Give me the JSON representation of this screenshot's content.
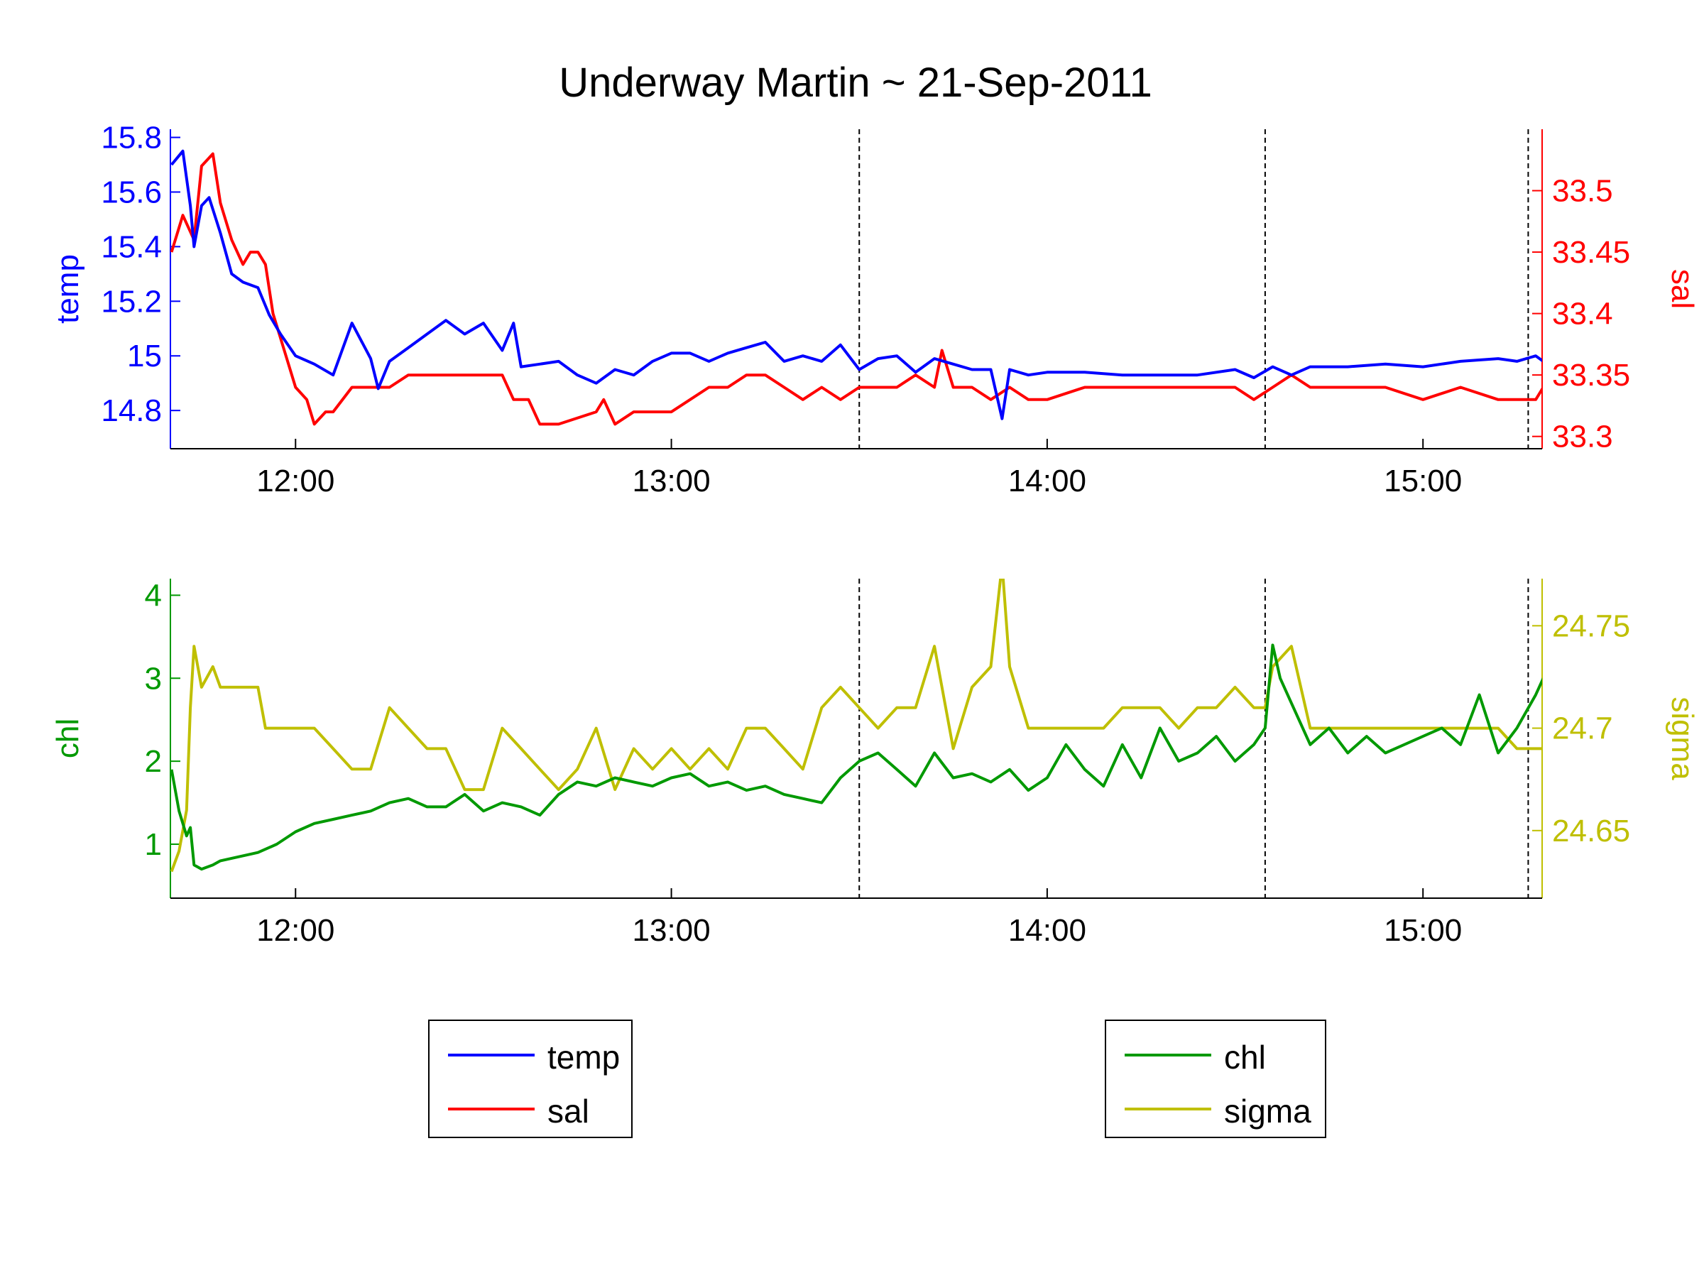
{
  "title": "Underway Martin ~ 21-Sep-2011",
  "colors": {
    "temp": "#0000ff",
    "sal": "#ff0000",
    "chl": "#009900",
    "sigma": "#bfbf00",
    "marker": "#000000"
  },
  "chart_data": [
    {
      "type": "line",
      "x_ticks": [
        "12:00",
        "13:00",
        "14:00",
        "15:00"
      ],
      "x_tick_values": [
        12.0,
        13.0,
        14.0,
        15.0
      ],
      "xlim": [
        11.667,
        15.317
      ],
      "vertical_markers": [
        13.5,
        14.58,
        15.28
      ],
      "left_axis": {
        "label": "temp",
        "ticks": [
          "14.8",
          "15",
          "15.2",
          "15.4",
          "15.6",
          "15.8"
        ],
        "ylim": [
          14.66,
          15.83
        ]
      },
      "right_axis": {
        "label": "sal",
        "ticks": [
          "33.3",
          "33.35",
          "33.4",
          "33.45",
          "33.5"
        ],
        "ylim": [
          33.29,
          33.55
        ]
      },
      "series": [
        {
          "name": "temp",
          "axis": "left",
          "x": [
            11.67,
            11.7,
            11.72,
            11.73,
            11.75,
            11.77,
            11.8,
            11.83,
            11.86,
            11.9,
            11.93,
            11.96,
            12.0,
            12.05,
            12.1,
            12.15,
            12.2,
            12.22,
            12.25,
            12.3,
            12.35,
            12.4,
            12.45,
            12.5,
            12.55,
            12.58,
            12.6,
            12.65,
            12.7,
            12.75,
            12.8,
            12.85,
            12.9,
            12.95,
            13.0,
            13.05,
            13.1,
            13.15,
            13.2,
            13.25,
            13.3,
            13.35,
            13.4,
            13.45,
            13.5,
            13.55,
            13.6,
            13.65,
            13.7,
            13.75,
            13.8,
            13.85,
            13.88,
            13.9,
            13.95,
            14.0,
            14.1,
            14.2,
            14.3,
            14.4,
            14.5,
            14.55,
            14.6,
            14.65,
            14.7,
            14.8,
            14.9,
            15.0,
            15.1,
            15.2,
            15.25,
            15.3,
            15.32
          ],
          "y": [
            15.7,
            15.75,
            15.55,
            15.4,
            15.55,
            15.58,
            15.45,
            15.3,
            15.27,
            15.25,
            15.15,
            15.08,
            15.0,
            14.97,
            14.93,
            15.12,
            14.99,
            14.88,
            14.98,
            15.03,
            15.08,
            15.13,
            15.08,
            15.12,
            15.02,
            15.12,
            14.96,
            14.97,
            14.98,
            14.93,
            14.9,
            14.95,
            14.93,
            14.98,
            15.01,
            15.01,
            14.98,
            15.01,
            15.03,
            15.05,
            14.98,
            15.0,
            14.98,
            15.04,
            14.95,
            14.99,
            15.0,
            14.94,
            14.99,
            14.97,
            14.95,
            14.95,
            14.77,
            14.95,
            14.93,
            14.94,
            14.94,
            14.93,
            14.93,
            14.93,
            14.95,
            14.92,
            14.96,
            14.93,
            14.96,
            14.96,
            14.97,
            14.96,
            14.98,
            14.99,
            14.98,
            15.0,
            14.98
          ]
        },
        {
          "name": "sal",
          "axis": "right",
          "x": [
            11.67,
            11.7,
            11.73,
            11.75,
            11.78,
            11.8,
            11.83,
            11.86,
            11.88,
            11.9,
            11.92,
            11.94,
            11.96,
            12.0,
            12.03,
            12.05,
            12.08,
            12.1,
            12.15,
            12.2,
            12.25,
            12.3,
            12.4,
            12.5,
            12.55,
            12.58,
            12.62,
            12.65,
            12.7,
            12.8,
            12.82,
            12.85,
            12.9,
            13.0,
            13.05,
            13.1,
            13.15,
            13.2,
            13.25,
            13.3,
            13.35,
            13.4,
            13.45,
            13.5,
            13.55,
            13.6,
            13.65,
            13.7,
            13.72,
            13.75,
            13.8,
            13.85,
            13.9,
            13.95,
            14.0,
            14.1,
            14.2,
            14.3,
            14.4,
            14.5,
            14.55,
            14.6,
            14.65,
            14.7,
            14.8,
            14.9,
            15.0,
            15.1,
            15.2,
            15.25,
            15.3,
            15.32
          ],
          "y": [
            33.45,
            33.48,
            33.46,
            33.52,
            33.53,
            33.49,
            33.46,
            33.44,
            33.45,
            33.45,
            33.44,
            33.4,
            33.38,
            33.34,
            33.33,
            33.31,
            33.32,
            33.32,
            33.34,
            33.34,
            33.34,
            33.35,
            33.35,
            33.35,
            33.35,
            33.33,
            33.33,
            33.31,
            33.31,
            33.32,
            33.33,
            33.31,
            33.32,
            33.32,
            33.33,
            33.34,
            33.34,
            33.35,
            33.35,
            33.34,
            33.33,
            33.34,
            33.33,
            33.34,
            33.34,
            33.34,
            33.35,
            33.34,
            33.37,
            33.34,
            33.34,
            33.33,
            33.34,
            33.33,
            33.33,
            33.34,
            33.34,
            33.34,
            33.34,
            33.34,
            33.33,
            33.34,
            33.35,
            33.34,
            33.34,
            33.34,
            33.33,
            33.34,
            33.33,
            33.33,
            33.33,
            33.34
          ]
        }
      ]
    },
    {
      "type": "line",
      "x_ticks": [
        "12:00",
        "13:00",
        "14:00",
        "15:00"
      ],
      "x_tick_values": [
        12.0,
        13.0,
        14.0,
        15.0
      ],
      "xlim": [
        11.667,
        15.317
      ],
      "vertical_markers": [
        13.5,
        14.58,
        15.28
      ],
      "left_axis": {
        "label": "chl",
        "ticks": [
          "1",
          "2",
          "3",
          "4"
        ],
        "ylim": [
          0.35,
          4.2
        ]
      },
      "right_axis": {
        "label": "sigma",
        "ticks": [
          "24.65",
          "24.7",
          "24.75"
        ],
        "ylim": [
          24.617,
          24.773
        ]
      },
      "series": [
        {
          "name": "chl",
          "axis": "left",
          "x": [
            11.67,
            11.69,
            11.71,
            11.72,
            11.73,
            11.75,
            11.78,
            11.8,
            11.85,
            11.9,
            11.95,
            12.0,
            12.05,
            12.1,
            12.15,
            12.2,
            12.25,
            12.3,
            12.35,
            12.4,
            12.45,
            12.5,
            12.55,
            12.6,
            12.65,
            12.7,
            12.75,
            12.8,
            12.85,
            12.9,
            12.95,
            13.0,
            13.05,
            13.1,
            13.15,
            13.2,
            13.25,
            13.3,
            13.35,
            13.4,
            13.45,
            13.5,
            13.55,
            13.6,
            13.65,
            13.7,
            13.75,
            13.8,
            13.85,
            13.9,
            13.95,
            14.0,
            14.05,
            14.1,
            14.15,
            14.2,
            14.25,
            14.3,
            14.35,
            14.4,
            14.45,
            14.5,
            14.55,
            14.58,
            14.6,
            14.62,
            14.65,
            14.7,
            14.75,
            14.8,
            14.85,
            14.9,
            14.95,
            15.0,
            15.05,
            15.1,
            15.15,
            15.2,
            15.25,
            15.3,
            15.32
          ],
          "y": [
            1.9,
            1.4,
            1.1,
            1.2,
            0.75,
            0.7,
            0.75,
            0.8,
            0.85,
            0.9,
            1.0,
            1.15,
            1.25,
            1.3,
            1.35,
            1.4,
            1.5,
            1.55,
            1.45,
            1.45,
            1.6,
            1.4,
            1.5,
            1.45,
            1.35,
            1.6,
            1.75,
            1.7,
            1.8,
            1.75,
            1.7,
            1.8,
            1.85,
            1.7,
            1.75,
            1.65,
            1.7,
            1.6,
            1.55,
            1.5,
            1.8,
            2.0,
            2.1,
            1.9,
            1.7,
            2.1,
            1.8,
            1.85,
            1.75,
            1.9,
            1.65,
            1.8,
            2.2,
            1.9,
            1.7,
            2.2,
            1.8,
            2.4,
            2.0,
            2.1,
            2.3,
            2.0,
            2.2,
            2.4,
            3.4,
            3.0,
            2.7,
            2.2,
            2.4,
            2.1,
            2.3,
            2.1,
            2.2,
            2.3,
            2.4,
            2.2,
            2.8,
            2.1,
            2.4,
            2.8,
            3.0
          ]
        },
        {
          "name": "sigma",
          "axis": "right",
          "x": [
            11.67,
            11.69,
            11.71,
            11.72,
            11.73,
            11.75,
            11.78,
            11.8,
            11.85,
            11.9,
            11.92,
            11.95,
            12.0,
            12.05,
            12.1,
            12.15,
            12.2,
            12.25,
            12.3,
            12.35,
            12.4,
            12.45,
            12.5,
            12.55,
            12.6,
            12.65,
            12.7,
            12.75,
            12.8,
            12.85,
            12.9,
            12.95,
            13.0,
            13.05,
            13.1,
            13.15,
            13.2,
            13.25,
            13.3,
            13.35,
            13.4,
            13.45,
            13.5,
            13.55,
            13.6,
            13.65,
            13.7,
            13.75,
            13.8,
            13.85,
            13.88,
            13.9,
            13.95,
            14.0,
            14.05,
            14.1,
            14.15,
            14.2,
            14.25,
            14.3,
            14.35,
            14.4,
            14.45,
            14.5,
            14.55,
            14.58,
            14.6,
            14.65,
            14.7,
            14.75,
            14.8,
            14.85,
            14.9,
            14.95,
            15.0,
            15.05,
            15.1,
            15.15,
            15.2,
            15.25,
            15.3,
            15.32
          ],
          "y": [
            24.63,
            24.64,
            24.66,
            24.71,
            24.74,
            24.72,
            24.73,
            24.72,
            24.72,
            24.72,
            24.7,
            24.7,
            24.7,
            24.7,
            24.69,
            24.68,
            24.68,
            24.71,
            24.7,
            24.69,
            24.69,
            24.67,
            24.67,
            24.7,
            24.69,
            24.68,
            24.67,
            24.68,
            24.7,
            24.67,
            24.69,
            24.68,
            24.69,
            24.68,
            24.69,
            24.68,
            24.7,
            24.7,
            24.69,
            24.68,
            24.71,
            24.72,
            24.71,
            24.7,
            24.71,
            24.71,
            24.74,
            24.69,
            24.72,
            24.73,
            24.78,
            24.73,
            24.7,
            24.7,
            24.7,
            24.7,
            24.7,
            24.71,
            24.71,
            24.71,
            24.7,
            24.71,
            24.71,
            24.72,
            24.71,
            24.71,
            24.73,
            24.74,
            24.7,
            24.7,
            24.7,
            24.7,
            24.7,
            24.7,
            24.7,
            24.7,
            24.7,
            24.7,
            24.7,
            24.69,
            24.69,
            24.69
          ]
        }
      ]
    }
  ],
  "legends": [
    {
      "items": [
        {
          "label": "temp"
        },
        {
          "label": "sal"
        }
      ]
    },
    {
      "items": [
        {
          "label": "chl"
        },
        {
          "label": "sigma"
        }
      ]
    }
  ]
}
